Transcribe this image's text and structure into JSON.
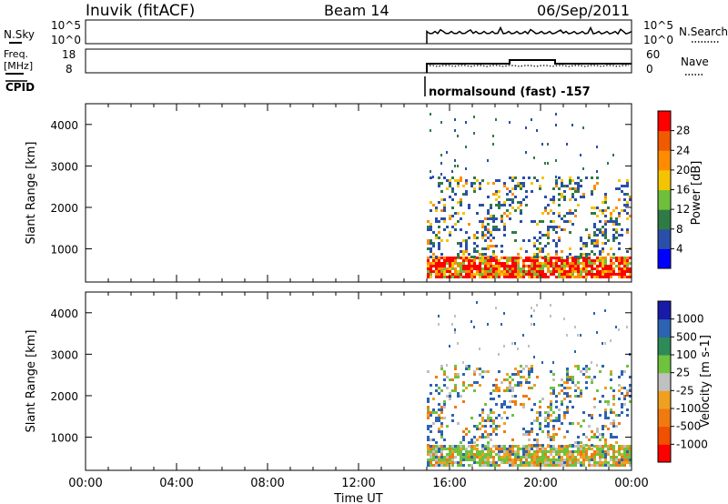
{
  "header": {
    "station": "Inuvik (fitACF)",
    "beam": "Beam 14",
    "date": "06/Sep/2011"
  },
  "top_panels": {
    "nsky_label": "N.Sky",
    "nsearch_label": "N.Search",
    "noise_ticks_left": [
      "10^5",
      "10^0"
    ],
    "noise_ticks_right": [
      "10^5",
      "10^0"
    ],
    "freq_label": [
      "Freq.",
      "[MHz]"
    ],
    "freq_ticks": [
      "18",
      "8"
    ],
    "nave_label": "Nave",
    "nave_ticks": [
      "60",
      "0"
    ],
    "cpid_label": "CPID",
    "cpid_text": "normalsound (fast) -157"
  },
  "colors": {
    "power": [
      "#0000ff",
      "#2a4fa8",
      "#2e7b45",
      "#6fbf3d",
      "#f5c400",
      "#ff8c00",
      "#f05a00",
      "#ff0000"
    ],
    "velocity": [
      "#1a1aa8",
      "#2c63b2",
      "#2e8a57",
      "#6fc23d",
      "#c0c0c0",
      "#f0a020",
      "#f07a10",
      "#f05000",
      "#ff0000"
    ]
  },
  "chart_data": [
    {
      "type": "heatmap",
      "panel": "power",
      "ylabel": "Slant Range [km]",
      "ylim": [
        200,
        4500
      ],
      "yticks": [
        "1000",
        "2000",
        "3000",
        "4000"
      ],
      "xlim": [
        0,
        24
      ],
      "data_start_hour": 15,
      "colorbar": {
        "label": "Power [dB]",
        "ticks": [
          "4",
          "8",
          "12",
          "16",
          "20",
          "24",
          "28"
        ],
        "range": [
          0,
          32
        ]
      }
    },
    {
      "type": "heatmap",
      "panel": "velocity",
      "ylabel": "Slant Range [km]",
      "ylim": [
        200,
        4500
      ],
      "yticks": [
        "1000",
        "2000",
        "3000",
        "4000"
      ],
      "xlim": [
        0,
        24
      ],
      "data_start_hour": 15,
      "colorbar": {
        "label": "Velocity [m s-1]",
        "ticks": [
          "1000",
          "500",
          "100",
          "25",
          "-25",
          "-100",
          "-500",
          "-1000"
        ]
      }
    }
  ],
  "x_axis": {
    "label": "Time UT",
    "ticks": [
      "00:00",
      "04:00",
      "08:00",
      "12:00",
      "16:00",
      "20:00",
      "00:00"
    ]
  }
}
